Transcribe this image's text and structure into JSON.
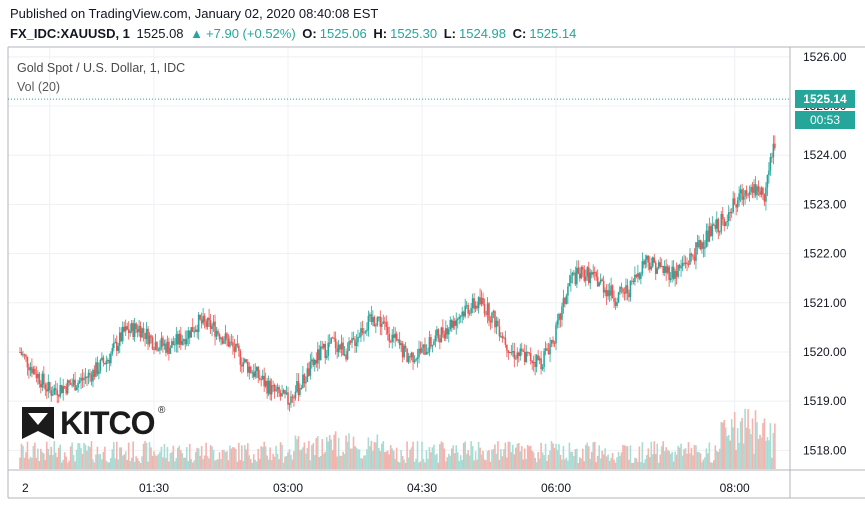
{
  "header": {
    "published": "Published on TradingView.com, January 02, 2020 08:40:08 EST",
    "symbol": "FX_IDC:XAUUSD, 1",
    "last": "1525.08",
    "change": "+7.90 (+0.52%)",
    "o_label": "O:",
    "o_value": "1525.06",
    "h_label": "H:",
    "h_value": "1525.30",
    "l_label": "L:",
    "l_value": "1524.98",
    "c_label": "C:",
    "c_value": "1525.14"
  },
  "legend": {
    "title": "Gold Spot / U.S. Dollar, 1, IDC",
    "volume": "Vol (20)"
  },
  "tags": {
    "price": "1525.14",
    "countdown": "00:53"
  },
  "logo": {
    "text": "KITCO",
    "reg": "®"
  },
  "colors": {
    "up": "#26a69a",
    "down": "#ef5350",
    "up_vol": "#a8dcd5",
    "down_vol": "#f5b3ad",
    "grid": "#eef0f3"
  },
  "chart_data": {
    "type": "candlestick",
    "title": "Gold Spot / U.S. Dollar, 1, IDC",
    "y_range": [
      1517.6,
      1526.2
    ],
    "y_ticks": [
      "1526.00",
      "1525.00",
      "1524.00",
      "1523.00",
      "1522.00",
      "1521.00",
      "1520.00",
      "1519.00",
      "1518.00"
    ],
    "y_tick_values": [
      1526,
      1525,
      1524,
      1523,
      1522,
      1521,
      1520,
      1519,
      1518
    ],
    "x_range_minutes": [
      0,
      520
    ],
    "x_ticks": [
      "2",
      "01:30",
      "03:00",
      "04:30",
      "06:00",
      "08:00"
    ],
    "x_tick_minutes": [
      20,
      90,
      180,
      270,
      360,
      480
    ],
    "last_price": 1525.14,
    "series": [
      {
        "name": "XAUUSD close (approx.)",
        "minutes": [
          0,
          10,
          20,
          30,
          40,
          50,
          60,
          70,
          80,
          90,
          100,
          110,
          120,
          130,
          140,
          150,
          160,
          170,
          180,
          190,
          200,
          210,
          220,
          230,
          240,
          250,
          260,
          270,
          280,
          290,
          300,
          310,
          320,
          330,
          340,
          350,
          360,
          370,
          380,
          390,
          400,
          410,
          420,
          430,
          440,
          450,
          460,
          470,
          480,
          490,
          500,
          510,
          515
        ],
        "values": [
          1520.0,
          1519.6,
          1519.2,
          1519.3,
          1519.4,
          1519.6,
          1519.9,
          1520.4,
          1520.5,
          1520.2,
          1520.1,
          1520.3,
          1520.6,
          1520.5,
          1520.2,
          1519.8,
          1519.5,
          1519.2,
          1519.0,
          1519.4,
          1519.9,
          1520.2,
          1520.0,
          1520.5,
          1520.7,
          1520.3,
          1519.9,
          1520.0,
          1520.3,
          1520.6,
          1520.9,
          1521.0,
          1520.6,
          1520.0,
          1519.9,
          1519.8,
          1520.4,
          1521.5,
          1521.6,
          1521.4,
          1521.1,
          1521.3,
          1521.9,
          1521.7,
          1521.6,
          1521.9,
          1522.3,
          1522.6,
          1523.0,
          1523.4,
          1523.2,
          1524.8,
          1525.1
        ]
      },
      {
        "name": "Vol (20)",
        "note": "volume bars, relative"
      }
    ]
  }
}
